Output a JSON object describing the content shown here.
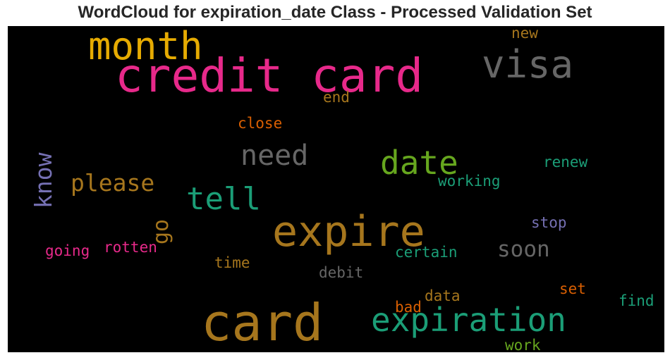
{
  "title": "WordCloud for expiration_date Class - Processed Validation Set",
  "words": [
    {
      "text": "credit card",
      "color": "#e7298a"
    },
    {
      "text": "card",
      "color": "#a6761d"
    },
    {
      "text": "expire",
      "color": "#a6761d"
    },
    {
      "text": "month",
      "color": "#e6ab02"
    },
    {
      "text": "visa",
      "color": "#666666"
    },
    {
      "text": "expiration",
      "color": "#1b9e77"
    },
    {
      "text": "date",
      "color": "#66a61e"
    },
    {
      "text": "tell",
      "color": "#1b9e77"
    },
    {
      "text": "need",
      "color": "#666666"
    },
    {
      "text": "please",
      "color": "#a6761d"
    },
    {
      "text": "know",
      "color": "#7570b3"
    },
    {
      "text": "soon",
      "color": "#666666"
    },
    {
      "text": "go",
      "color": "#a6761d"
    },
    {
      "text": "new",
      "color": "#a6761d"
    },
    {
      "text": "end",
      "color": "#a6761d"
    },
    {
      "text": "close",
      "color": "#d95f02"
    },
    {
      "text": "renew",
      "color": "#1b9e77"
    },
    {
      "text": "working",
      "color": "#1b9e77"
    },
    {
      "text": "stop",
      "color": "#7570b3"
    },
    {
      "text": "going",
      "color": "#e7298a"
    },
    {
      "text": "rotten",
      "color": "#e7298a"
    },
    {
      "text": "certain",
      "color": "#1b9e77"
    },
    {
      "text": "time",
      "color": "#a6761d"
    },
    {
      "text": "debit",
      "color": "#666666"
    },
    {
      "text": "set",
      "color": "#d95f02"
    },
    {
      "text": "data",
      "color": "#a6761d"
    },
    {
      "text": "bad",
      "color": "#d95f02"
    },
    {
      "text": "find",
      "color": "#1b9e77"
    },
    {
      "text": "work",
      "color": "#66a61e"
    }
  ]
}
